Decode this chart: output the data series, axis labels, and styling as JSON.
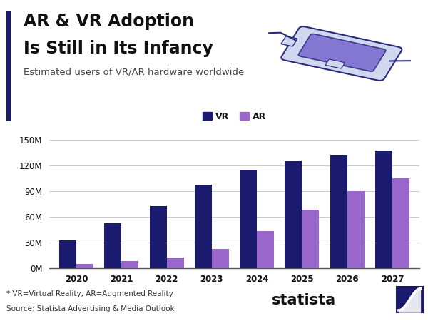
{
  "title_line1": "AR & VR Adoption",
  "title_line2": "Is Still in Its Infancy",
  "subtitle": "Estimated users of VR/AR hardware worldwide",
  "years": [
    2020,
    2021,
    2022,
    2023,
    2024,
    2025,
    2026,
    2027
  ],
  "vr_values": [
    32,
    52,
    72,
    97,
    115,
    126,
    132,
    137
  ],
  "ar_values": [
    5,
    8,
    12,
    22,
    43,
    68,
    90,
    105
  ],
  "vr_color": "#1a1a6e",
  "ar_color": "#9966cc",
  "bar_width": 0.38,
  "ylim": [
    0,
    150
  ],
  "yticks": [
    0,
    30,
    60,
    90,
    120,
    150
  ],
  "ytick_labels": [
    "0M",
    "30M",
    "60M",
    "90M",
    "120M",
    "150M"
  ],
  "legend_vr": "VR",
  "legend_ar": "AR",
  "footnote1": "* VR=Virtual Reality, AR=Augmented Reality",
  "footnote2": "Source: Statista Advertising & Media Outlook",
  "background_color": "#ffffff",
  "accent_bar_color": "#1a1a6e",
  "title_fontsize": 17,
  "subtitle_fontsize": 9.5,
  "axis_fontsize": 8.5,
  "headset_outline_color": "#2a2a7a",
  "headset_face_color": "#d0d8f0",
  "headset_lens_color": "#7766cc"
}
